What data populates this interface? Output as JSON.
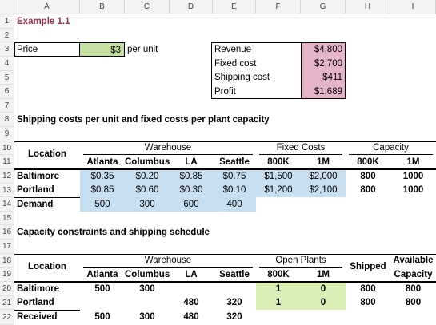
{
  "columns": [
    "A",
    "B",
    "C",
    "D",
    "E",
    "F",
    "G",
    "H",
    "I"
  ],
  "rows": [
    "1",
    "2",
    "3",
    "4",
    "5",
    "6",
    "7",
    "8",
    "9",
    "10",
    "11",
    "12",
    "13",
    "14",
    "15",
    "16",
    "17",
    "18",
    "19",
    "20",
    "21",
    "22"
  ],
  "title": "Example 1.1",
  "price": {
    "label": "Price",
    "value": "$3",
    "unit": "per unit"
  },
  "summary": [
    {
      "label": "Revenue",
      "value": "$4,800"
    },
    {
      "label": "Fixed cost",
      "value": "$2,700"
    },
    {
      "label": "Shipping cost",
      "value": "$411"
    },
    {
      "label": "Profit",
      "value": "$1,689"
    }
  ],
  "section1": {
    "title": "Shipping costs per unit and fixed costs per plant capacity",
    "location_label": "Location",
    "warehouse_label": "Warehouse",
    "fixed_costs_label": "Fixed Costs",
    "capacity_label": "Capacity",
    "headers": [
      "Atlanta",
      "Columbus",
      "LA",
      "Seattle",
      "800K",
      "1M",
      "800K",
      "1M"
    ],
    "rows": [
      {
        "name": "Baltimore",
        "values": [
          "$0.35",
          "$0.20",
          "$0.85",
          "$0.75",
          "$1,500",
          "$2,000",
          "800",
          "1000"
        ]
      },
      {
        "name": "Portland",
        "values": [
          "$0.85",
          "$0.60",
          "$0.30",
          "$0.10",
          "$1,200",
          "$2,100",
          "800",
          "1000"
        ]
      }
    ],
    "demand": {
      "name": "Demand",
      "values": [
        "500",
        "300",
        "600",
        "400"
      ]
    }
  },
  "section2": {
    "title": "Capacity constraints and shipping schedule",
    "location_label": "Location",
    "warehouse_label": "Warehouse",
    "open_plants_label": "Open Plants",
    "shipped_label": "Shipped",
    "available_label_1": "Available",
    "available_label_2": "Capacity",
    "headers": [
      "Atlanta",
      "Columbus",
      "LA",
      "Seattle",
      "800K",
      "1M"
    ],
    "rows": [
      {
        "name": "Baltimore",
        "values": [
          "500",
          "300",
          "",
          "",
          "1",
          "0",
          "800",
          "800"
        ]
      },
      {
        "name": "Portland",
        "values": [
          "",
          "",
          "480",
          "320",
          "1",
          "0",
          "800",
          "800"
        ]
      }
    ],
    "received": {
      "name": "Received",
      "values": [
        "500",
        "300",
        "480",
        "320"
      ]
    }
  }
}
